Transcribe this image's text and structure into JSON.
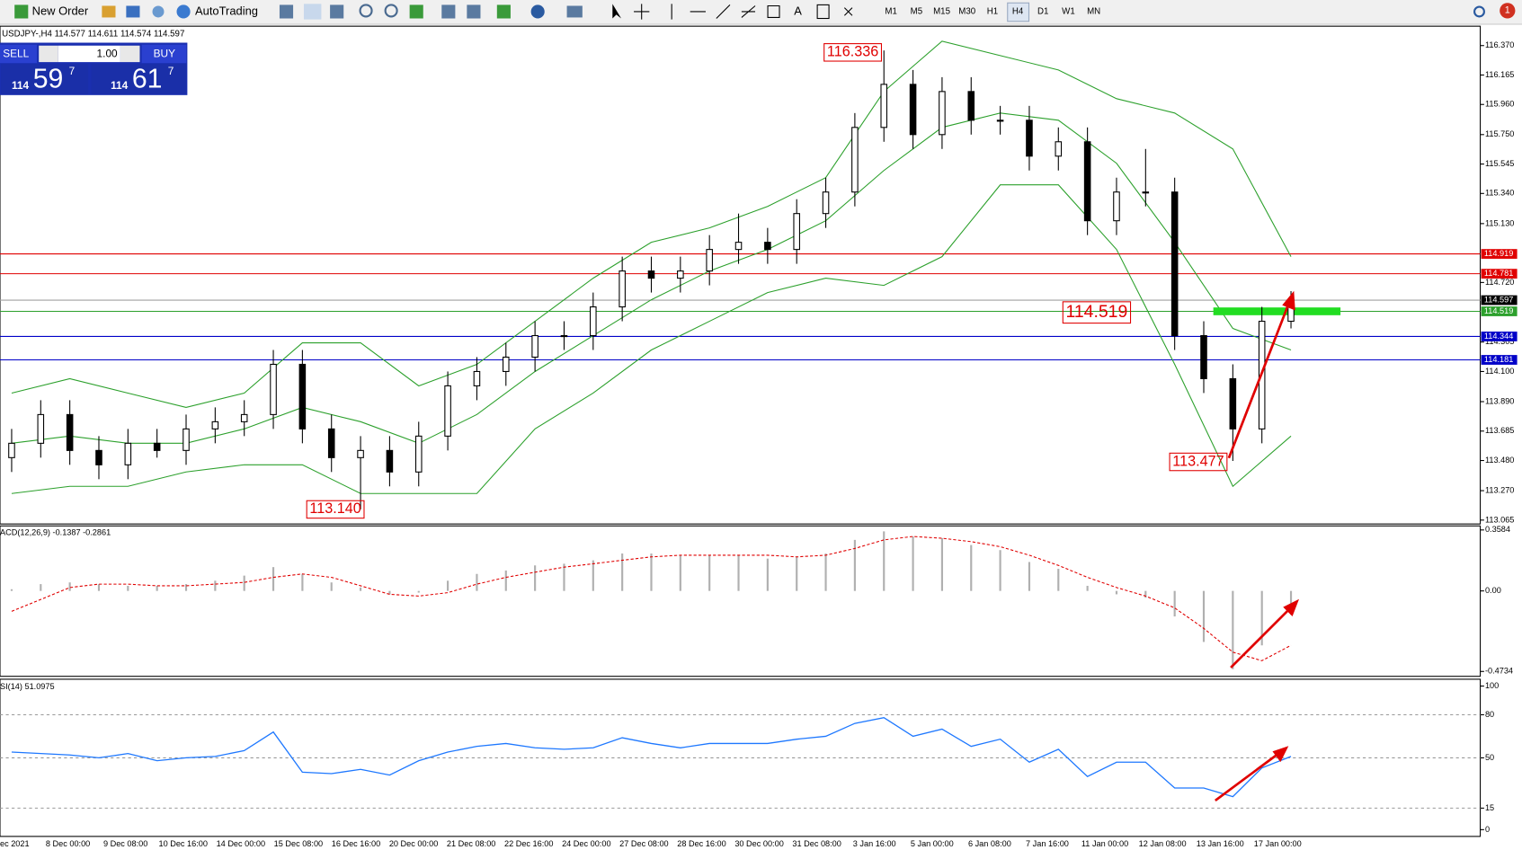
{
  "toolbar": {
    "new_order": "New Order",
    "auto_trading": "AutoTrading",
    "timeframes": [
      "M1",
      "M5",
      "M15",
      "M30",
      "H1",
      "H4",
      "D1",
      "W1",
      "MN"
    ],
    "notifications": "1"
  },
  "trade_panel": {
    "sell": "SELL",
    "buy": "BUY",
    "volume": "1.00",
    "bid": {
      "big": "114",
      "main": "59",
      "small": "7"
    },
    "ask": {
      "big": "114",
      "main": "61",
      "small": "7"
    }
  },
  "chart": {
    "header": "USDJPY-,H4  114.577 114.611 114.574 114.597",
    "opens": [
      113.5,
      113.6,
      113.8,
      113.55,
      113.45,
      113.6,
      113.55,
      113.7,
      113.75,
      113.8,
      114.15,
      113.7,
      113.5,
      113.55,
      113.4,
      113.65,
      114.0,
      114.1,
      114.2,
      114.35,
      114.35,
      114.55,
      114.8,
      114.75,
      114.8,
      114.95,
      115.0,
      114.95,
      115.2,
      115.35,
      115.8,
      116.1,
      115.75,
      116.05,
      115.85,
      115.85,
      115.6,
      115.7,
      115.15,
      115.35,
      115.35,
      114.35,
      114.05,
      113.7,
      114.45
    ],
    "highs": [
      113.7,
      113.9,
      113.9,
      113.65,
      113.7,
      113.7,
      113.8,
      113.85,
      113.9,
      114.25,
      114.25,
      113.8,
      113.65,
      113.65,
      113.75,
      114.1,
      114.2,
      114.3,
      114.45,
      114.45,
      114.65,
      114.9,
      114.9,
      114.9,
      115.05,
      115.2,
      115.1,
      115.3,
      115.45,
      115.9,
      116.336,
      116.2,
      116.15,
      116.15,
      115.95,
      115.95,
      115.8,
      115.8,
      115.45,
      115.65,
      115.45,
      114.45,
      114.15,
      114.55,
      114.66
    ],
    "lows": [
      113.4,
      113.5,
      113.45,
      113.35,
      113.35,
      113.5,
      113.45,
      113.6,
      113.65,
      113.7,
      113.6,
      113.4,
      113.14,
      113.3,
      113.3,
      113.55,
      113.9,
      114.0,
      114.1,
      114.25,
      114.25,
      114.45,
      114.65,
      114.65,
      114.7,
      114.85,
      114.85,
      114.85,
      115.1,
      115.25,
      115.7,
      115.65,
      115.65,
      115.75,
      115.75,
      115.5,
      115.5,
      115.05,
      115.05,
      115.25,
      114.25,
      113.95,
      113.477,
      113.6,
      114.4
    ],
    "closes": [
      113.6,
      113.8,
      113.55,
      113.45,
      113.6,
      113.55,
      113.7,
      113.75,
      113.8,
      114.15,
      113.7,
      113.5,
      113.55,
      113.4,
      113.65,
      114.0,
      114.1,
      114.2,
      114.35,
      114.35,
      114.55,
      114.8,
      114.75,
      114.8,
      114.95,
      115.0,
      114.95,
      115.2,
      115.35,
      115.8,
      116.1,
      115.75,
      116.05,
      115.85,
      115.85,
      115.6,
      115.7,
      115.15,
      115.35,
      115.35,
      114.35,
      114.05,
      113.7,
      114.45,
      114.6
    ],
    "bands": {
      "color": "#2ca02c",
      "upper": [
        113.95,
        114.05,
        113.95,
        113.85,
        113.95,
        114.3,
        114.3,
        114.0,
        114.15,
        114.45,
        114.75,
        115.0,
        115.1,
        115.25,
        115.45,
        116.05,
        116.4,
        116.3,
        116.2,
        116.0,
        115.9,
        115.65,
        114.9
      ],
      "middle": [
        113.6,
        113.65,
        113.6,
        113.6,
        113.7,
        113.85,
        113.75,
        113.6,
        113.8,
        114.1,
        114.35,
        114.6,
        114.8,
        114.95,
        115.15,
        115.5,
        115.8,
        115.9,
        115.85,
        115.55,
        115.0,
        114.4,
        114.25
      ],
      "lower": [
        113.25,
        113.3,
        113.3,
        113.4,
        113.45,
        113.45,
        113.25,
        113.25,
        113.25,
        113.7,
        113.95,
        114.25,
        114.45,
        114.65,
        114.75,
        114.7,
        114.9,
        115.4,
        115.4,
        114.95,
        114.15,
        113.3,
        113.65
      ]
    },
    "ylim": [
      113.038,
      116.505
    ],
    "yticks": [
      {
        "value": 116.37,
        "label": "116.370"
      },
      116.165,
      {
        "value": 115.96,
        "label": "115.960"
      },
      {
        "value": 115.75,
        "label": "115.750"
      },
      115.545,
      {
        "value": 115.34,
        "label": "115.340"
      },
      {
        "value": 115.13,
        "label": "115.130"
      },
      {
        "value": 114.72,
        "label": "114.720"
      },
      114.305,
      {
        "value": 114.1,
        "label": "114.100"
      },
      {
        "value": 113.89,
        "label": "113.890"
      },
      113.685,
      {
        "value": 113.48,
        "label": "113.480"
      },
      {
        "value": 113.27,
        "label": "113.270"
      },
      113.065
    ],
    "hlines": [
      {
        "value": 114.919,
        "color": "#e00000"
      },
      {
        "value": 114.781,
        "color": "#e00000"
      },
      {
        "value": 114.597,
        "color": "#a0a0a0"
      },
      {
        "value": 114.519,
        "color": "#2ca02c"
      },
      {
        "value": 114.344,
        "color": "#0000c8"
      },
      {
        "value": 114.181,
        "color": "#0000c8"
      }
    ],
    "highlight": {
      "value": 114.519,
      "color": "#22dd22"
    },
    "annotations": [
      "116.336",
      "113.140",
      "114.519",
      "113.477"
    ],
    "time_labels": [
      "ec 2021",
      "8 Dec 00:00",
      "9 Dec 08:00",
      "10 Dec 16:00",
      "14 Dec 00:00",
      "15 Dec 08:00",
      "16 Dec 16:00",
      "20 Dec 00:00",
      "21 Dec 08:00",
      "22 Dec 16:00",
      "24 Dec 00:00",
      "27 Dec 08:00",
      "28 Dec 16:00",
      "30 Dec 00:00",
      "31 Dec 08:00",
      "3 Jan 16:00",
      "5 Jan 00:00",
      "6 Jan 08:00",
      "7 Jan 16:00",
      "11 Jan 00:00",
      "12 Jan 08:00",
      "13 Jan 16:00",
      "17 Jan 00:00"
    ]
  },
  "macd": {
    "label": "ACD(12,26,9) -0.1387 -0.2861",
    "histogram": [
      0.01,
      0.04,
      0.05,
      0.04,
      0.03,
      0.03,
      0.04,
      0.06,
      0.09,
      0.14,
      0.1,
      0.05,
      0.02,
      -0.02,
      -0.01,
      0.06,
      0.1,
      0.12,
      0.15,
      0.16,
      0.18,
      0.22,
      0.22,
      0.21,
      0.21,
      0.21,
      0.19,
      0.2,
      0.22,
      0.3,
      0.35,
      0.32,
      0.31,
      0.27,
      0.24,
      0.17,
      0.13,
      0.03,
      -0.02,
      -0.04,
      -0.15,
      -0.3,
      -0.46,
      -0.32,
      -0.14
    ],
    "signal": [
      -0.12,
      -0.05,
      0.02,
      0.04,
      0.04,
      0.03,
      0.03,
      0.04,
      0.05,
      0.08,
      0.1,
      0.08,
      0.03,
      -0.02,
      -0.03,
      -0.01,
      0.04,
      0.08,
      0.11,
      0.14,
      0.16,
      0.18,
      0.2,
      0.21,
      0.21,
      0.21,
      0.21,
      0.2,
      0.21,
      0.25,
      0.3,
      0.32,
      0.31,
      0.29,
      0.26,
      0.21,
      0.15,
      0.08,
      0.02,
      -0.03,
      -0.1,
      -0.22,
      -0.36,
      -0.41,
      -0.32
    ],
    "hist_color": "#b0b0b0",
    "signal_color": "#e00000",
    "ylim": [
      -0.502,
      0.3765
    ],
    "yticks": [
      0.3584,
      {
        "value": 0,
        "label": "0.00"
      },
      -0.4734
    ]
  },
  "rsi": {
    "label": "SI(14) 51.0975",
    "values": [
      54,
      53,
      52,
      50,
      53,
      48,
      50,
      51,
      55,
      68,
      40,
      39,
      42,
      38,
      48,
      54,
      58,
      60,
      57,
      56,
      57,
      64,
      60,
      57,
      60,
      60,
      60,
      63,
      65,
      74,
      78,
      65,
      70,
      58,
      63,
      47,
      56,
      37,
      47,
      47,
      29,
      29,
      23,
      43,
      51
    ],
    "color": "#1e78ff",
    "ylim": [
      -4.7,
      103.4
    ],
    "yticks": [
      100,
      80,
      50,
      15,
      0
    ],
    "levels": [
      80,
      50,
      15
    ]
  }
}
